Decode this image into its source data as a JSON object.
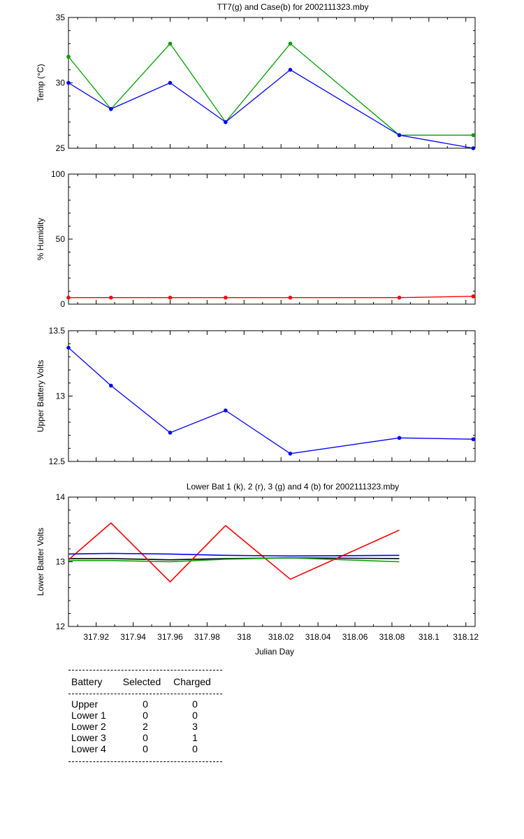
{
  "chart_data": [
    {
      "type": "line",
      "title": "TT7(g) and Case(b) for 2002111323.mby",
      "xlabel": "",
      "ylabel": "Temp  (°C)",
      "ylim": [
        25,
        35
      ],
      "yticks": [
        "25",
        "30",
        "35"
      ],
      "xlim": [
        317.905,
        318.125
      ],
      "series": [
        {
          "name": "TT7 (g)",
          "color": "#00a000",
          "x": [
            317.905,
            317.928,
            317.96,
            317.99,
            318.025,
            318.084,
            318.124
          ],
          "y": [
            32,
            28,
            33,
            27,
            33,
            26,
            26
          ]
        },
        {
          "name": "Case (b)",
          "color": "#0000ff",
          "x": [
            317.905,
            317.928,
            317.96,
            317.99,
            318.025,
            318.084,
            318.124
          ],
          "y": [
            30,
            28,
            30,
            27,
            31,
            26,
            25
          ]
        }
      ]
    },
    {
      "type": "line",
      "title": "",
      "ylabel": "% Humidity",
      "ylim": [
        0,
        100
      ],
      "yticks": [
        "0",
        "50",
        "100"
      ],
      "xlim": [
        317.905,
        318.125
      ],
      "series": [
        {
          "name": "",
          "color": "#ff0000",
          "x": [
            317.905,
            317.928,
            317.96,
            317.99,
            318.025,
            318.084,
            318.124
          ],
          "y": [
            5,
            5,
            5,
            5,
            5,
            5,
            6
          ]
        }
      ]
    },
    {
      "type": "line",
      "title": "",
      "ylabel": "Upper Battery Volts",
      "ylim": [
        12.5,
        13.5
      ],
      "yticks": [
        "12.5",
        "13",
        "13.5"
      ],
      "xlim": [
        317.905,
        318.125
      ],
      "series": [
        {
          "name": "",
          "color": "#0000ff",
          "x": [
            317.905,
            317.928,
            317.96,
            317.99,
            318.025,
            318.084,
            318.124
          ],
          "y": [
            13.37,
            13.08,
            12.72,
            12.89,
            12.56,
            12.68,
            12.67
          ]
        }
      ]
    },
    {
      "type": "line",
      "title": "Lower Bat 1 (k), 2 (r), 3 (g) and 4 (b) for 2002111323.mby",
      "xlabel": "Julian Day",
      "ylabel": "Lower Batter Volts",
      "ylim": [
        12,
        14
      ],
      "yticks": [
        "12",
        "13",
        "14"
      ],
      "xlim": [
        317.905,
        318.125
      ],
      "xticks": [
        {
          "v": 317.92,
          "label": "317.92"
        },
        {
          "v": 317.94,
          "label": "317.94"
        },
        {
          "v": 317.96,
          "label": "317.96"
        },
        {
          "v": 317.98,
          "label": "317.98"
        },
        {
          "v": 318.0,
          "label": "318"
        },
        {
          "v": 318.02,
          "label": "318.02"
        },
        {
          "v": 318.04,
          "label": "318.04"
        },
        {
          "v": 318.06,
          "label": "318.06"
        },
        {
          "v": 318.08,
          "label": "318.08"
        },
        {
          "v": 318.1,
          "label": "318.1"
        },
        {
          "v": 318.12,
          "label": "318.12"
        }
      ],
      "series": [
        {
          "name": "1 (k)",
          "color": "#000000",
          "x": [
            317.905,
            317.928,
            317.96,
            317.99,
            318.025,
            318.084
          ],
          "y": [
            13.05,
            13.05,
            13.03,
            13.05,
            13.06,
            13.05
          ]
        },
        {
          "name": "2 (r)",
          "color": "#ff0000",
          "x": [
            317.905,
            317.928,
            317.96,
            317.99,
            318.025,
            318.084
          ],
          "y": [
            13.03,
            13.6,
            12.69,
            13.56,
            12.73,
            13.49
          ]
        },
        {
          "name": "3 (g)",
          "color": "#00a000",
          "x": [
            317.905,
            317.928,
            317.96,
            317.99,
            318.025,
            318.084
          ],
          "y": [
            13.02,
            13.02,
            13.0,
            13.04,
            13.06,
            13.0
          ]
        },
        {
          "name": "4 (b)",
          "color": "#0000ff",
          "x": [
            317.905,
            317.928,
            317.96,
            317.99,
            318.025,
            318.084
          ],
          "y": [
            13.12,
            13.13,
            13.12,
            13.1,
            13.09,
            13.1
          ]
        }
      ]
    }
  ],
  "battery_table": {
    "headers": [
      "Battery",
      "Selected",
      "Charged"
    ],
    "rows": [
      [
        "Upper",
        "0",
        "0"
      ],
      [
        "Lower 1",
        "0",
        "0"
      ],
      [
        "Lower 2",
        "2",
        "3"
      ],
      [
        "Lower 3",
        "0",
        "1"
      ],
      [
        "Lower 4",
        "0",
        "0"
      ]
    ]
  }
}
